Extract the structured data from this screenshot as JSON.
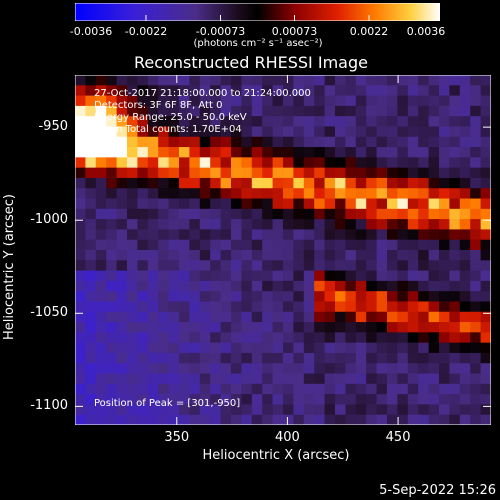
{
  "colorbar": {
    "ticks": [
      "-0.0036",
      "-0.0022",
      "-0.00073",
      "0.00073",
      "0.0022",
      "0.0036"
    ],
    "units": "(photons cm⁻² s⁻¹ asec⁻²)",
    "min": -0.0036,
    "max": 0.0036
  },
  "chart_data": {
    "type": "heatmap",
    "title": "Reconstructed RHESSI Image",
    "xlabel": "Heliocentric X (arcsec)",
    "ylabel": "Heliocentric Y (arcsec)",
    "xlim": [
      304,
      492
    ],
    "ylim": [
      -1110,
      -922
    ],
    "xticks": [
      "350",
      "400",
      "450"
    ],
    "yticks": [
      "-950",
      "-1000",
      "-1050",
      "-1100"
    ],
    "info_lines": [
      "27-Oct-2017 21:18:00.000 to 21:24:00.000",
      "Detectors: 3F 6F 8F, Att 0",
      "Energy Range: 25.0 - 50.0 keV",
      "Clean    Total counts: 1.70E+04"
    ],
    "peak_text": "Position of Peak = [301,-950]"
  },
  "footer": "5-Sep-2022 15:26"
}
